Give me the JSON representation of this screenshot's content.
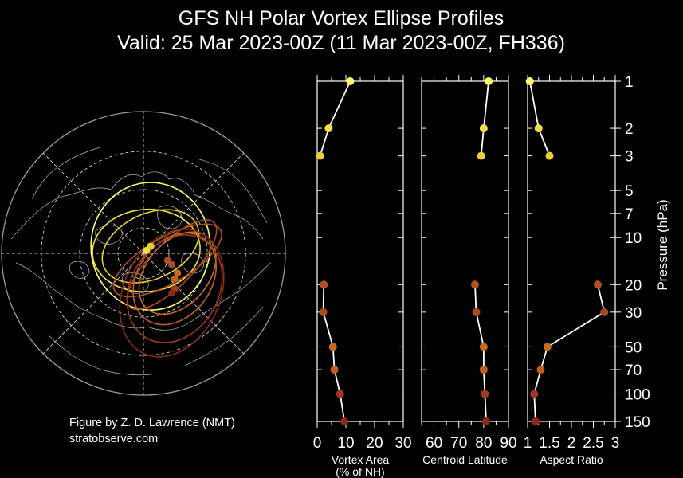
{
  "header": {
    "title_line1": "GFS NH Polar Vortex Ellipse Profiles",
    "title_line2": "Valid: 25 Mar 2023-00Z  (11 Mar 2023-00Z, FH336)"
  },
  "credits": {
    "author": "Figure by Z. D. Lawrence (NMT)",
    "site": "stratobserve.com"
  },
  "colors": {
    "background": "#000000",
    "axis": "#ffffff",
    "profile_line": "#ffffff",
    "map_border": "#9a9a9a",
    "coast": "#d8d8d8",
    "grid": "#cccccc"
  },
  "chart_data": [
    {
      "type": "map",
      "projection": "north-polar-stereographic",
      "grid": true,
      "ellipses": [
        {
          "level_hpa": 1,
          "color": "#ffff66",
          "cx": 0.05,
          "cy": -0.05,
          "rx": 0.42,
          "ry": 0.45,
          "rot": 0
        },
        {
          "level_hpa": 2,
          "color": "#f0e040",
          "cx": 0.02,
          "cy": -0.02,
          "rx": 0.38,
          "ry": 0.29,
          "rot": -5
        },
        {
          "level_hpa": 3,
          "color": "#e8d030",
          "cx": 0.05,
          "cy": -0.05,
          "rx": 0.36,
          "ry": 0.23,
          "rot": -25
        },
        {
          "level_hpa": 20,
          "color": "#b05020",
          "cx": 0.17,
          "cy": 0.05,
          "rx": 0.43,
          "ry": 0.16,
          "rot": -30
        },
        {
          "level_hpa": 30,
          "color": "#a84a22",
          "cx": 0.2,
          "cy": 0.08,
          "rx": 0.42,
          "ry": 0.15,
          "rot": -45
        },
        {
          "level_hpa": 50,
          "color": "#c86b20",
          "cx": 0.24,
          "cy": 0.14,
          "rx": 0.33,
          "ry": 0.22,
          "rot": -50
        },
        {
          "level_hpa": 70,
          "color": "#c05f20",
          "cx": 0.22,
          "cy": 0.18,
          "rx": 0.35,
          "ry": 0.26,
          "rot": -55
        },
        {
          "level_hpa": 100,
          "color": "#a03a1e",
          "cx": 0.22,
          "cy": 0.25,
          "rx": 0.4,
          "ry": 0.31,
          "rot": -60
        },
        {
          "level_hpa": 150,
          "color": "#8a2a18",
          "cx": 0.2,
          "cy": 0.28,
          "rx": 0.47,
          "ry": 0.34,
          "rot": -65
        }
      ]
    },
    {
      "type": "line",
      "xlabel": "Vortex Area\n(% of NH)",
      "xlim": [
        0,
        30
      ],
      "xticks": [
        0,
        10,
        20,
        30
      ],
      "ylim": [
        1,
        150
      ],
      "yscale": "log",
      "inverted_y": true,
      "points": [
        {
          "p": 1,
          "x": 11.5,
          "color": "#ffff66"
        },
        {
          "p": 2,
          "x": 4,
          "color": "#f0e040"
        },
        {
          "p": 3,
          "x": 1,
          "color": "#e8d030"
        },
        {
          "p": 20,
          "x": 2.3,
          "color": "#b05020"
        },
        {
          "p": 30,
          "x": 2.1,
          "color": "#a84a22"
        },
        {
          "p": 50,
          "x": 5.5,
          "color": "#c86b20"
        },
        {
          "p": 70,
          "x": 6,
          "color": "#c05f20"
        },
        {
          "p": 100,
          "x": 8,
          "color": "#a03a1e"
        },
        {
          "p": 150,
          "x": 9.5,
          "color": "#8a2a18"
        }
      ]
    },
    {
      "type": "line",
      "xlabel": "Centroid Latitude",
      "xlim": [
        55,
        90
      ],
      "xticks": [
        60,
        70,
        80,
        90
      ],
      "ylim": [
        1,
        150
      ],
      "yscale": "log",
      "inverted_y": true,
      "points": [
        {
          "p": 1,
          "x": 82,
          "color": "#ffff66"
        },
        {
          "p": 2,
          "x": 80,
          "color": "#f0e040"
        },
        {
          "p": 3,
          "x": 79,
          "color": "#e8d030"
        },
        {
          "p": 20,
          "x": 76.5,
          "color": "#b05020"
        },
        {
          "p": 30,
          "x": 77,
          "color": "#a84a22"
        },
        {
          "p": 50,
          "x": 80,
          "color": "#c86b20"
        },
        {
          "p": 70,
          "x": 80,
          "color": "#c05f20"
        },
        {
          "p": 100,
          "x": 80.5,
          "color": "#a03a1e"
        },
        {
          "p": 150,
          "x": 81,
          "color": "#8a2a18"
        }
      ]
    },
    {
      "type": "line",
      "xlabel": "Aspect Ratio",
      "xlim": [
        1,
        3
      ],
      "xticks": [
        1,
        1.5,
        2,
        2.5,
        3
      ],
      "ylim": [
        1,
        150
      ],
      "yscale": "log",
      "inverted_y": true,
      "ylabel": "Pressure (hPa)",
      "yticks": [
        1,
        2,
        3,
        5,
        7,
        10,
        20,
        30,
        50,
        70,
        100,
        150
      ],
      "points": [
        {
          "p": 1,
          "x": 1.05,
          "color": "#ffff66"
        },
        {
          "p": 2,
          "x": 1.25,
          "color": "#f0e040"
        },
        {
          "p": 3,
          "x": 1.5,
          "color": "#e8d030"
        },
        {
          "p": 20,
          "x": 2.6,
          "color": "#b05020"
        },
        {
          "p": 30,
          "x": 2.75,
          "color": "#a84a22"
        },
        {
          "p": 50,
          "x": 1.45,
          "color": "#c86b20"
        },
        {
          "p": 70,
          "x": 1.3,
          "color": "#c05f20"
        },
        {
          "p": 100,
          "x": 1.15,
          "color": "#a03a1e"
        },
        {
          "p": 150,
          "x": 1.18,
          "color": "#8a2a18"
        }
      ]
    }
  ]
}
